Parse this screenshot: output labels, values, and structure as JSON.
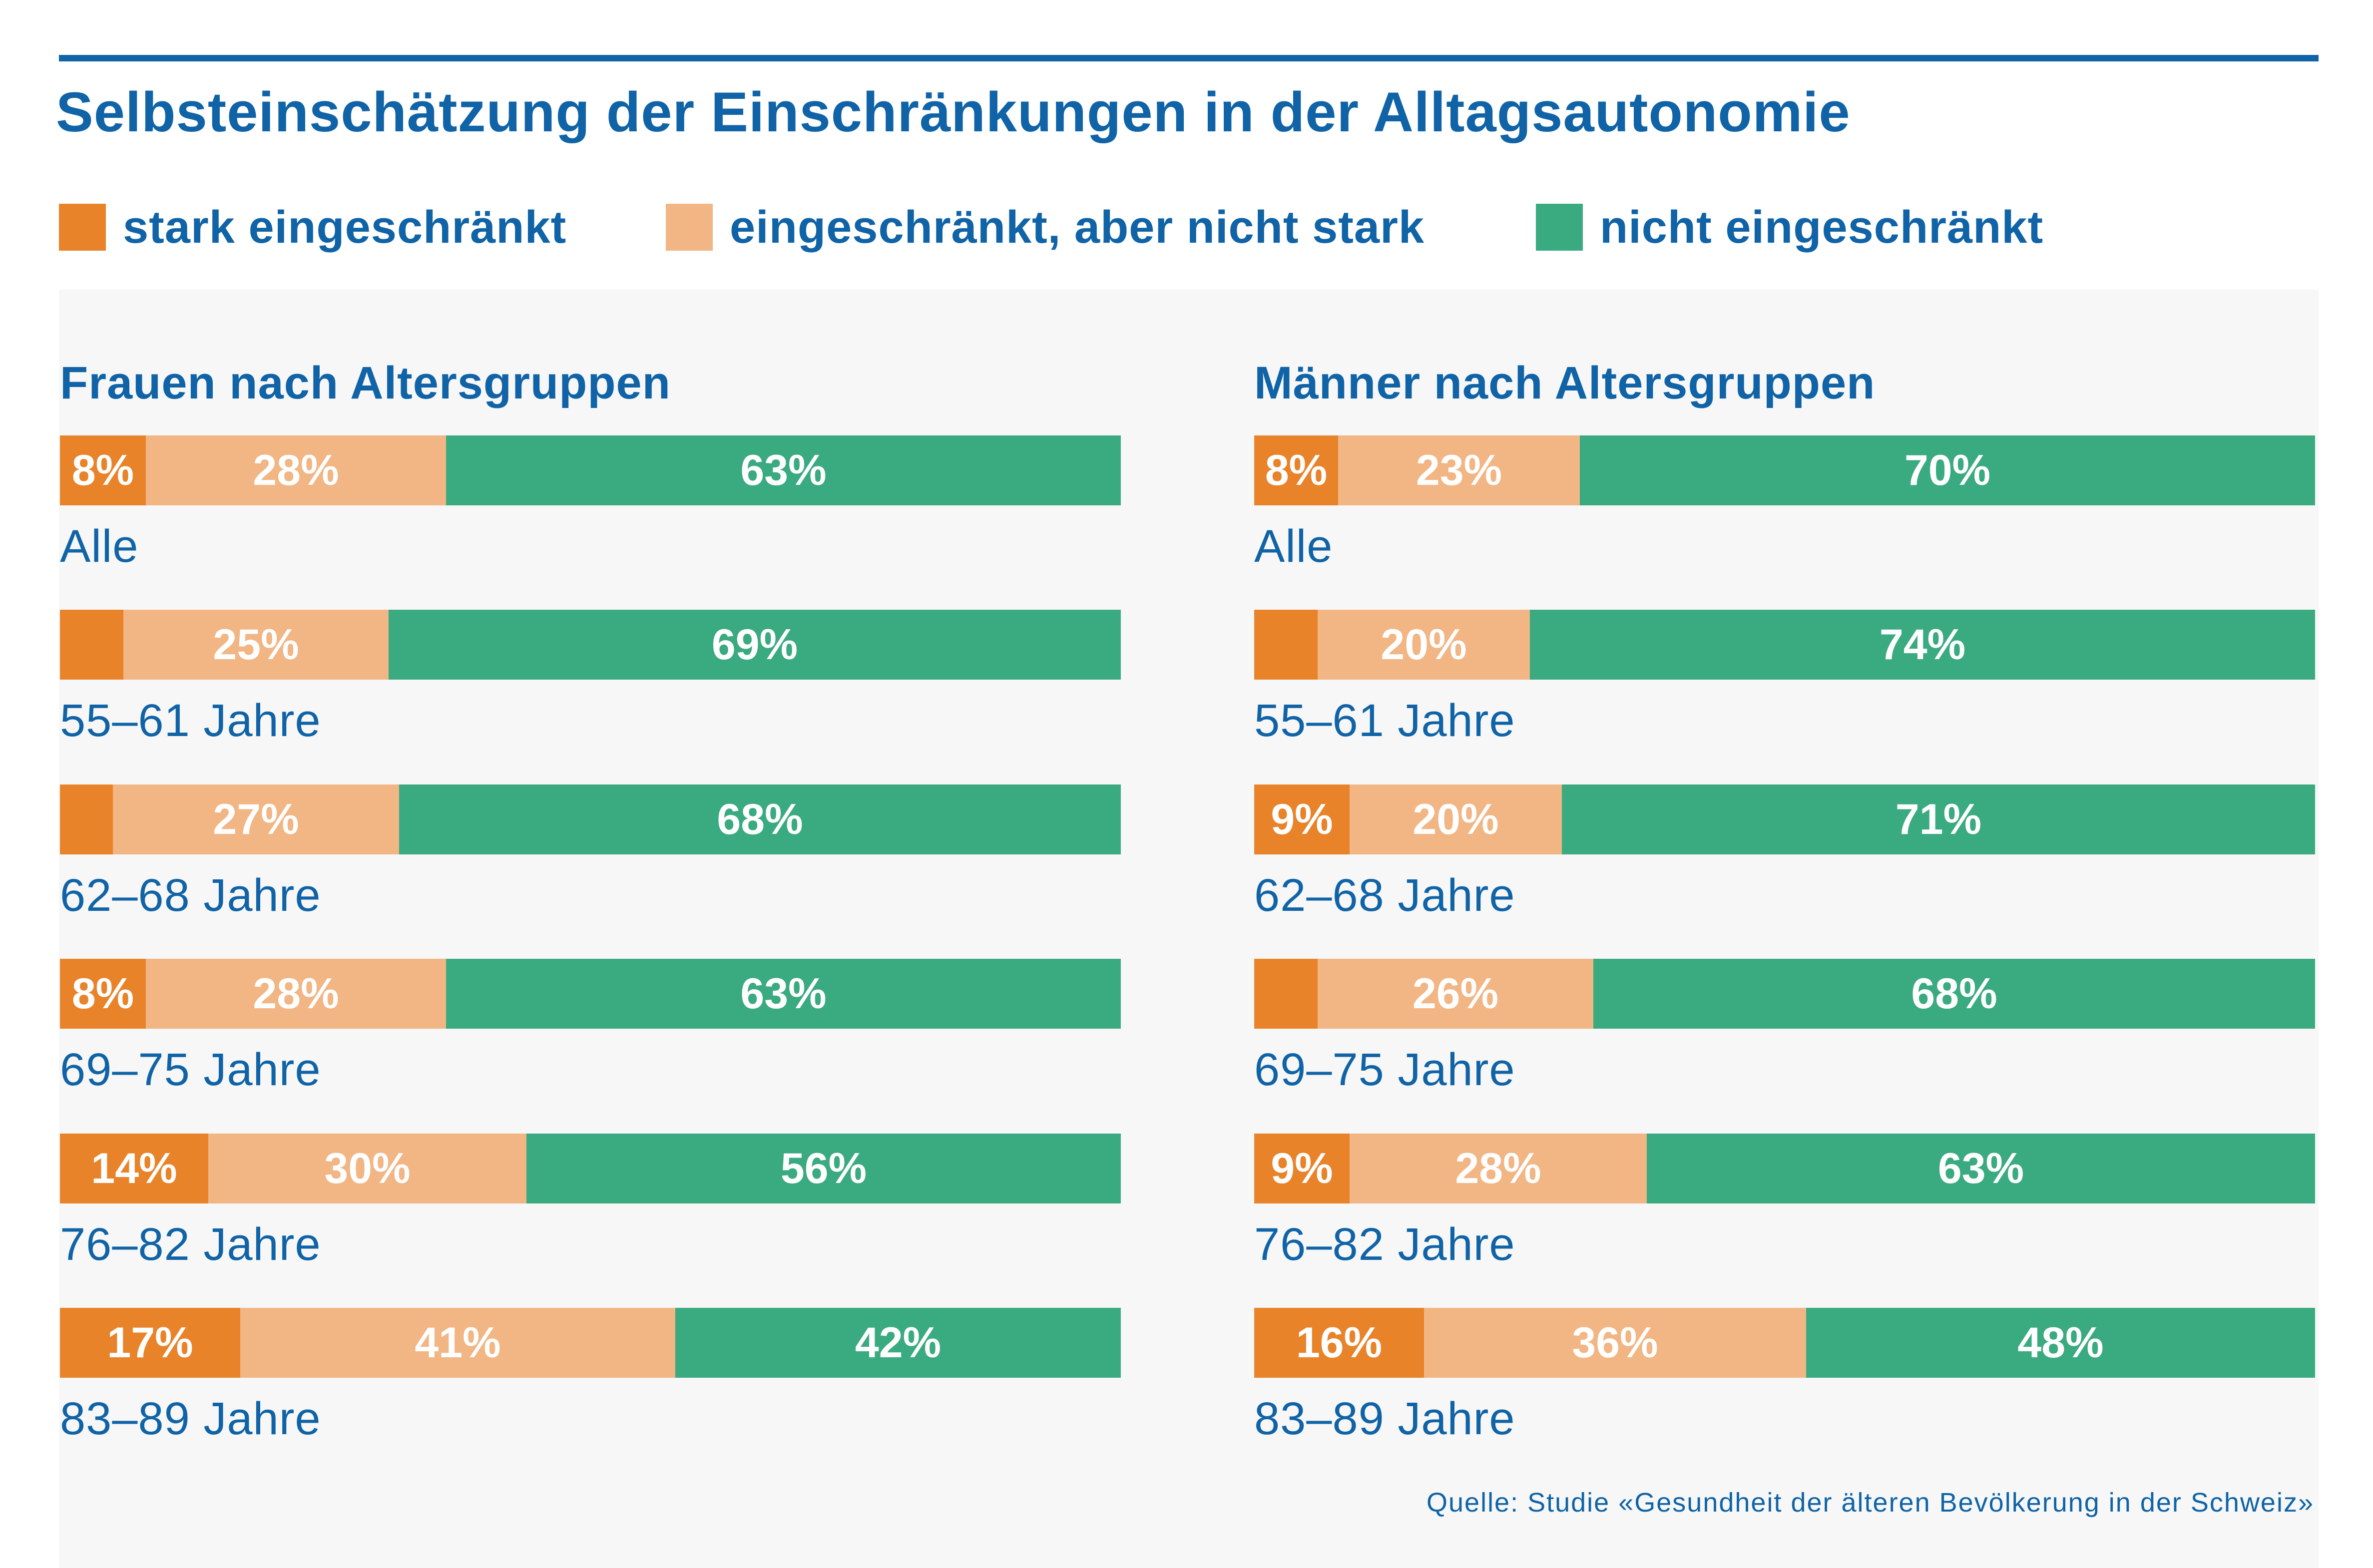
{
  "title": "Selbsteinschätzung der Einschränkungen in der Alltagsautonomie",
  "legend": [
    {
      "label": "stark eingeschränkt",
      "color": "#e8832a"
    },
    {
      "label": "eingeschränkt, aber nicht stark",
      "color": "#f2b584"
    },
    {
      "label": "nicht eingeschränkt",
      "color": "#3aaa80"
    }
  ],
  "source": "Quelle: Studie «Gesundheit der älteren Bevölkerung in der Schweiz»",
  "chart_data": [
    {
      "type": "bar",
      "stacked": true,
      "orientation": "horizontal",
      "title": "Frauen nach Altersgruppen",
      "categories": [
        "Alle",
        "55–61 Jahre",
        "62–68 Jahre",
        "69–75 Jahre",
        "76–82 Jahre",
        "83–89 Jahre"
      ],
      "series": [
        {
          "name": "stark eingeschränkt",
          "values": [
            8,
            6,
            5,
            8,
            14,
            17
          ],
          "labels": [
            "8%",
            "",
            "",
            "8%",
            "14%",
            "17%"
          ]
        },
        {
          "name": "eingeschränkt, aber nicht stark",
          "values": [
            28,
            25,
            27,
            28,
            30,
            41
          ],
          "labels": [
            "28%",
            "25%",
            "27%",
            "28%",
            "30%",
            "41%"
          ]
        },
        {
          "name": "nicht eingeschränkt",
          "values": [
            63,
            69,
            68,
            63,
            56,
            42
          ],
          "labels": [
            "63%",
            "69%",
            "68%",
            "63%",
            "56%",
            "42%"
          ]
        }
      ]
    },
    {
      "type": "bar",
      "stacked": true,
      "orientation": "horizontal",
      "title": "Männer nach Altersgruppen",
      "categories": [
        "Alle",
        "55–61 Jahre",
        "62–68 Jahre",
        "69–75 Jahre",
        "76–82 Jahre",
        "83–89 Jahre"
      ],
      "series": [
        {
          "name": "stark eingeschränkt",
          "values": [
            8,
            6,
            9,
            6,
            9,
            16
          ],
          "labels": [
            "8%",
            "",
            "9%",
            "",
            "9%",
            "16%"
          ]
        },
        {
          "name": "eingeschränkt, aber nicht stark",
          "values": [
            23,
            20,
            20,
            26,
            28,
            36
          ],
          "labels": [
            "23%",
            "20%",
            "20%",
            "26%",
            "28%",
            "36%"
          ]
        },
        {
          "name": "nicht eingeschränkt",
          "values": [
            70,
            74,
            71,
            68,
            63,
            48
          ],
          "labels": [
            "70%",
            "74%",
            "71%",
            "68%",
            "63%",
            "48%"
          ]
        }
      ]
    }
  ]
}
